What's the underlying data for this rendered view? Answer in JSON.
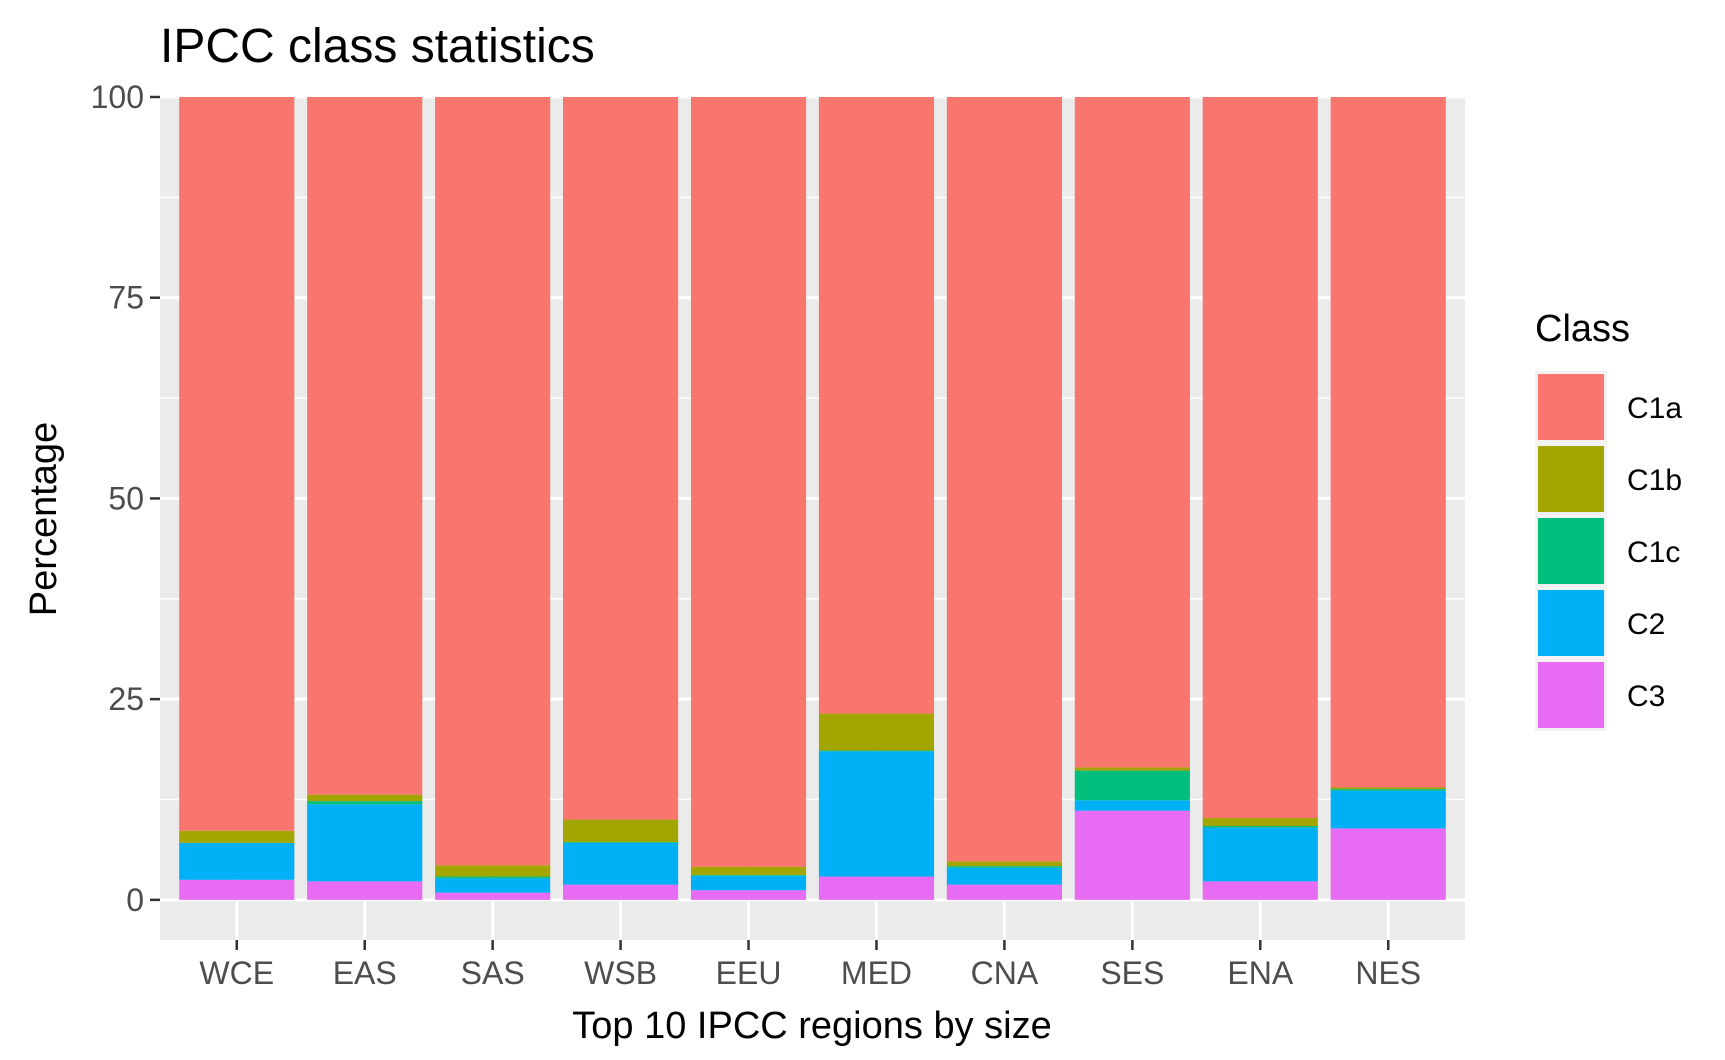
{
  "chart_data": {
    "type": "bar",
    "stacked": true,
    "title": "IPCC class statistics",
    "xlabel": "Top 10 IPCC regions by size",
    "ylabel": "Percentage",
    "ylim": [
      -5,
      100
    ],
    "yticks": [
      0,
      25,
      50,
      75,
      100
    ],
    "grid": true,
    "legend": {
      "title": "Class",
      "position": "right"
    },
    "categories": [
      "WCE",
      "EAS",
      "SAS",
      "WSB",
      "EEU",
      "MED",
      "CNA",
      "SES",
      "ENA",
      "NES"
    ],
    "series": [
      {
        "name": "C3",
        "color": "#E76BF3",
        "values": [
          2.5,
          2.3,
          0.9,
          1.9,
          1.2,
          2.9,
          1.9,
          11.1,
          2.3,
          8.9
        ]
      },
      {
        "name": "C2",
        "color": "#00B0F6",
        "values": [
          4.6,
          9.6,
          1.8,
          5.2,
          1.8,
          15.6,
          2.1,
          1.3,
          6.7,
          4.7
        ]
      },
      {
        "name": "C1c",
        "color": "#00BF7D",
        "values": [
          0.0,
          0.4,
          0.2,
          0.1,
          0.1,
          0.1,
          0.2,
          3.7,
          0.2,
          0.2
        ]
      },
      {
        "name": "C1b",
        "color": "#A3A500",
        "values": [
          1.5,
          0.8,
          1.4,
          2.8,
          1.0,
          4.6,
          0.6,
          0.4,
          1.0,
          0.2
        ]
      },
      {
        "name": "C1a",
        "color": "#F8766D",
        "values": [
          91.4,
          86.9,
          95.7,
          90.0,
          95.9,
          76.8,
          95.2,
          83.5,
          89.8,
          86.0
        ]
      }
    ],
    "legend_order": [
      "C1a",
      "C1b",
      "C1c",
      "C2",
      "C3"
    ]
  }
}
